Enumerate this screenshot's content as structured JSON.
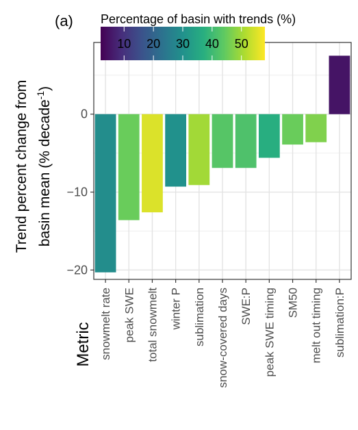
{
  "chart_data": {
    "type": "bar",
    "panel_label": "(a)",
    "categories": [
      "snowmelt rate",
      "peak SWE",
      "total snowmelt",
      "winter P",
      "sublimation",
      "snow-covered days",
      "SWE:P",
      "peak SWE timing",
      "SM50",
      "melt out timing",
      "sublimation:P"
    ],
    "values": [
      -20.3,
      -13.6,
      -12.6,
      -9.3,
      -9.1,
      -6.9,
      -6.9,
      -5.6,
      -3.9,
      -3.6,
      7.5
    ],
    "trend_percent": [
      29,
      45,
      55,
      30,
      50,
      43,
      42,
      37,
      45,
      47,
      5
    ],
    "ylabel_line1": "Trend percent change from",
    "ylabel_line2_prefix": "basin mean (% decade",
    "ylabel_superscript": "-1",
    "ylabel_line2_suffix": ")",
    "xlabel": "Metric",
    "ylim": [
      -21.2,
      9.2
    ],
    "yticks": [
      -20,
      -10,
      0
    ],
    "ytick_labels": [
      "−20",
      "−10",
      "0"
    ],
    "grid": true,
    "legend": {
      "title": "Percentage of basin with trends (%)",
      "colorscale": "viridis",
      "range": [
        2,
        58
      ],
      "ticks": [
        10,
        20,
        30,
        40,
        50
      ],
      "tick_labels": [
        "10",
        "20",
        "30",
        "40",
        "50"
      ],
      "placement": "top-left"
    }
  }
}
